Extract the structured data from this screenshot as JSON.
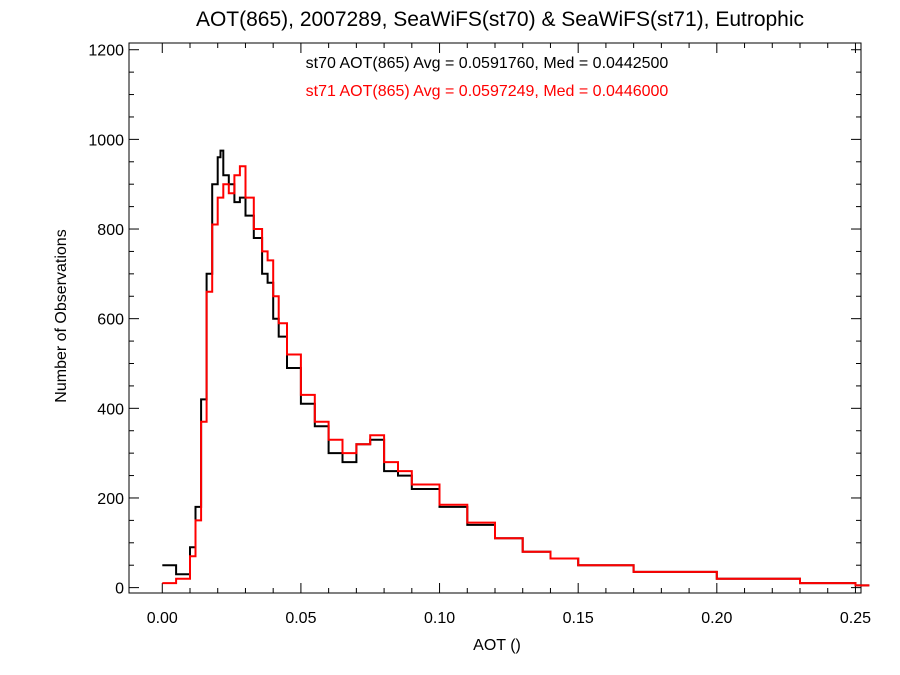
{
  "chart_data": {
    "type": "line",
    "step": true,
    "title": "AOT(865), 2007289, SeaWiFS(st70) & SeaWiFS(st71), Eutrophic",
    "xlabel": "AOT ()",
    "ylabel": "Number of Observations",
    "xlim": [
      -0.012,
      0.252
    ],
    "ylim": [
      -12,
      1215
    ],
    "xticks": [
      0.0,
      0.05,
      0.1,
      0.15,
      0.2,
      0.25
    ],
    "xtick_labels": [
      "0.00",
      "0.05",
      "0.10",
      "0.15",
      "0.20",
      "0.25"
    ],
    "yticks": [
      0,
      200,
      400,
      600,
      800,
      1000,
      1200
    ],
    "ytick_labels": [
      "0",
      "200",
      "400",
      "600",
      "800",
      "1000",
      "1200"
    ],
    "grid": false,
    "annotations": [
      {
        "text": "st70 AOT(865) Avg = 0.0591760, Med = 0.0442500",
        "color": "#000000"
      },
      {
        "text": "st71 AOT(865) Avg = 0.0597249, Med = 0.0446000",
        "color": "#ff0000"
      }
    ],
    "series": [
      {
        "color": "#000000",
        "x": [
          0.0,
          0.005,
          0.01,
          0.012,
          0.014,
          0.016,
          0.018,
          0.02,
          0.021,
          0.022,
          0.024,
          0.026,
          0.028,
          0.03,
          0.033,
          0.036,
          0.038,
          0.04,
          0.042,
          0.045,
          0.05,
          0.055,
          0.06,
          0.065,
          0.07,
          0.075,
          0.08,
          0.085,
          0.09,
          0.1,
          0.11,
          0.12,
          0.13,
          0.14,
          0.15,
          0.17,
          0.2,
          0.23,
          0.25
        ],
        "values": [
          50,
          30,
          90,
          180,
          420,
          700,
          900,
          960,
          975,
          920,
          900,
          860,
          870,
          830,
          780,
          700,
          680,
          600,
          560,
          490,
          410,
          360,
          300,
          280,
          320,
          330,
          260,
          250,
          220,
          180,
          140,
          110,
          80,
          65,
          50,
          35,
          20,
          10,
          5
        ]
      },
      {
        "color": "#ff0000",
        "x": [
          0.0,
          0.005,
          0.01,
          0.012,
          0.014,
          0.016,
          0.018,
          0.02,
          0.022,
          0.024,
          0.026,
          0.028,
          0.03,
          0.033,
          0.036,
          0.038,
          0.04,
          0.042,
          0.045,
          0.05,
          0.055,
          0.06,
          0.065,
          0.07,
          0.075,
          0.08,
          0.085,
          0.09,
          0.1,
          0.11,
          0.12,
          0.13,
          0.14,
          0.15,
          0.17,
          0.2,
          0.23,
          0.25
        ],
        "values": [
          10,
          20,
          70,
          150,
          370,
          660,
          810,
          870,
          900,
          880,
          920,
          940,
          870,
          800,
          750,
          730,
          650,
          590,
          520,
          430,
          370,
          330,
          300,
          320,
          340,
          280,
          260,
          230,
          185,
          145,
          110,
          80,
          65,
          50,
          35,
          20,
          10,
          5
        ]
      }
    ]
  }
}
